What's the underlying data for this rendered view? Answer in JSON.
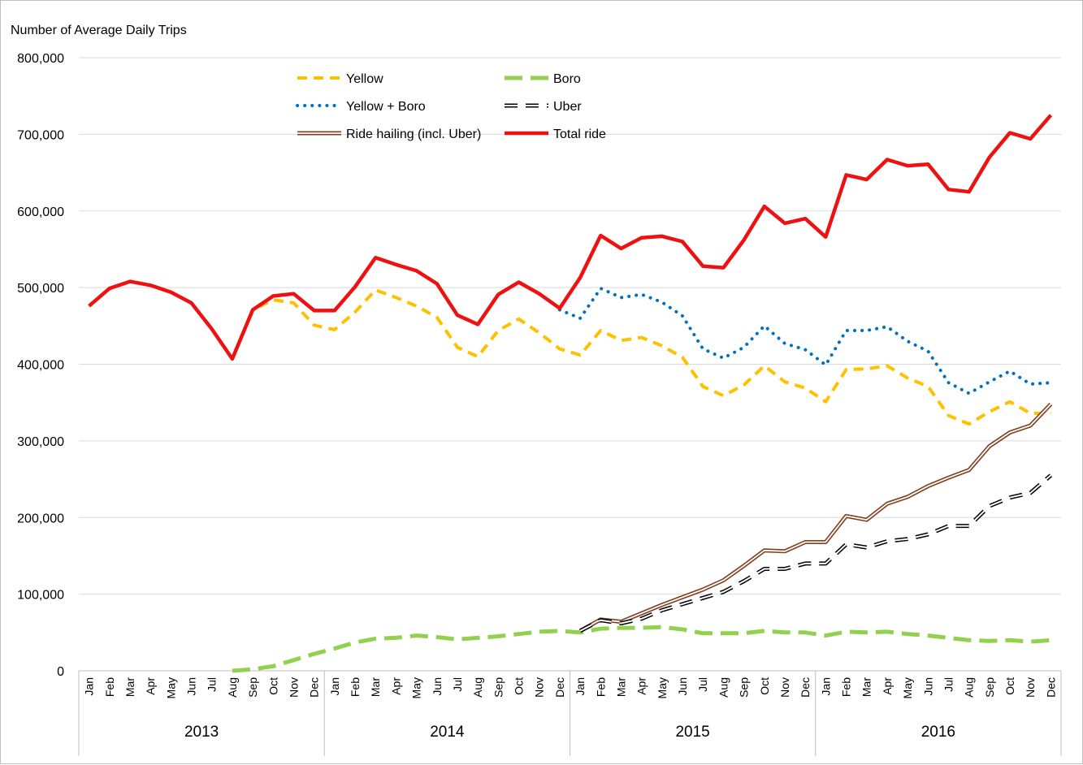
{
  "chart_data": {
    "type": "line",
    "ylabel": "Number of Average Daily Trips",
    "ylim": [
      0,
      800000
    ],
    "y_ticks": [
      "0",
      "100,000",
      "200,000",
      "300,000",
      "400,000",
      "500,000",
      "600,000",
      "700,000",
      "800,000"
    ],
    "y_tick_values": [
      0,
      100000,
      200000,
      300000,
      400000,
      500000,
      600000,
      700000,
      800000
    ],
    "grid": "horizontal",
    "legend_placement": "top-left",
    "categories": [
      "Jan",
      "Feb",
      "Mar",
      "Apr",
      "May",
      "Jun",
      "Jul",
      "Aug",
      "Sep",
      "Oct",
      "Nov",
      "Dec",
      "Jan",
      "Feb",
      "Mar",
      "Apr",
      "May",
      "Jun",
      "Jul",
      "Aug",
      "Sep",
      "Oct",
      "Nov",
      "Dec",
      "Jan",
      "Feb",
      "Mar",
      "Apr",
      "May",
      "Jun",
      "Jul",
      "Aug",
      "Sep",
      "Oct",
      "Nov",
      "Dec",
      "Jan",
      "Feb",
      "Mar",
      "Apr",
      "May",
      "Jun",
      "Jul",
      "Aug",
      "Sep",
      "Oct",
      "Nov",
      "Dec"
    ],
    "years": [
      {
        "label": "2013",
        "start": 0,
        "end": 11
      },
      {
        "label": "2014",
        "start": 12,
        "end": 23
      },
      {
        "label": "2015",
        "start": 24,
        "end": 35
      },
      {
        "label": "2016",
        "start": 36,
        "end": 47
      }
    ],
    "series": [
      {
        "name": "Total ride",
        "color": "#ee1111",
        "style": "solid-thick",
        "values": [
          476000,
          499000,
          508000,
          503000,
          494000,
          480000,
          446000,
          407000,
          471000,
          489000,
          492000,
          470000,
          470000,
          501000,
          539000,
          530000,
          522000,
          505000,
          464000,
          452000,
          491000,
          507000,
          492000,
          473000,
          513000,
          568000,
          551000,
          565000,
          567000,
          560000,
          528000,
          526000,
          562000,
          606000,
          584000,
          590000,
          566000,
          647000,
          641000,
          667000,
          659000,
          661000,
          628000,
          625000,
          670000,
          702000,
          694000,
          725000
        ]
      },
      {
        "name": "Yellow",
        "color": "#ffc000",
        "style": "dashed",
        "values": [
          476000,
          499000,
          508000,
          503000,
          494000,
          480000,
          446000,
          407000,
          471000,
          484000,
          480000,
          451000,
          445000,
          468000,
          497000,
          487000,
          476000,
          461000,
          422000,
          410000,
          444000,
          459000,
          441000,
          420000,
          412000,
          444000,
          431000,
          435000,
          424000,
          409000,
          371000,
          359000,
          373000,
          398000,
          377000,
          369000,
          351000,
          393000,
          394000,
          398000,
          382000,
          371000,
          333000,
          322000,
          338000,
          351000,
          336000,
          336000
        ]
      },
      {
        "name": "Boro",
        "color": "#92d050",
        "style": "long-dash",
        "values": [
          null,
          null,
          null,
          null,
          null,
          null,
          null,
          0,
          2000,
          6000,
          14000,
          22000,
          29000,
          37000,
          42000,
          43000,
          46000,
          44000,
          41000,
          43000,
          45000,
          48000,
          51000,
          52000,
          50000,
          55000,
          56000,
          56000,
          57000,
          54000,
          49000,
          49000,
          49000,
          52000,
          50000,
          50000,
          46000,
          51000,
          50000,
          51000,
          48000,
          46000,
          43000,
          40000,
          39000,
          40000,
          38000,
          40000
        ]
      },
      {
        "name": "Yellow + Boro",
        "color": "#0070c0",
        "style": "dotted",
        "values": [
          null,
          null,
          null,
          null,
          null,
          null,
          null,
          null,
          null,
          null,
          null,
          null,
          null,
          null,
          null,
          null,
          null,
          null,
          null,
          null,
          null,
          null,
          null,
          471000,
          460000,
          499000,
          487000,
          491000,
          481000,
          463000,
          420000,
          408000,
          422000,
          450000,
          427000,
          419000,
          399000,
          444000,
          444000,
          449000,
          430000,
          417000,
          376000,
          362000,
          377000,
          391000,
          374000,
          376000
        ]
      },
      {
        "name": "Uber",
        "color": "#000000",
        "style": "double-dashed",
        "values": [
          null,
          null,
          null,
          null,
          null,
          null,
          null,
          null,
          null,
          null,
          null,
          null,
          null,
          null,
          null,
          null,
          null,
          null,
          null,
          null,
          null,
          null,
          null,
          null,
          52000,
          66000,
          62000,
          68000,
          79000,
          87000,
          95000,
          103000,
          117000,
          133000,
          133000,
          140000,
          140000,
          165000,
          161000,
          169000,
          172000,
          178000,
          189000,
          189000,
          215000,
          226000,
          232000,
          255000
        ]
      },
      {
        "name": "Ride hailing (incl. Uber)",
        "color": "#7f3f1f",
        "style": "double",
        "values": [
          null,
          null,
          null,
          null,
          null,
          null,
          null,
          null,
          null,
          null,
          null,
          null,
          null,
          null,
          null,
          null,
          null,
          null,
          null,
          null,
          null,
          null,
          null,
          null,
          52000,
          67000,
          64000,
          75000,
          86000,
          96000,
          106000,
          118000,
          137000,
          157000,
          156000,
          168000,
          168000,
          202000,
          197000,
          218000,
          227000,
          241000,
          252000,
          262000,
          293000,
          311000,
          320000,
          348000
        ]
      }
    ],
    "legend": [
      {
        "name": "Yellow"
      },
      {
        "name": "Boro"
      },
      {
        "name": "Yellow + Boro"
      },
      {
        "name": "Uber"
      },
      {
        "name": "Ride hailing (incl. Uber)"
      },
      {
        "name": "Total ride"
      }
    ]
  }
}
